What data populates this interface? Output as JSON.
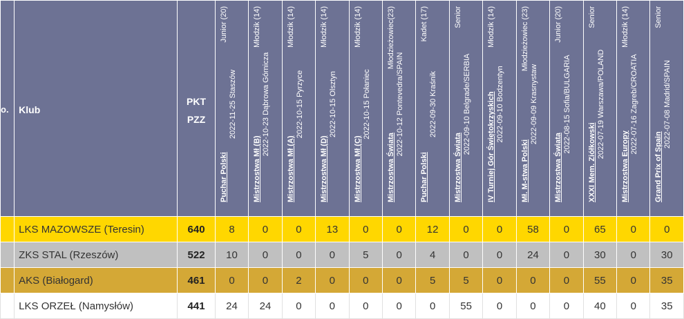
{
  "header": {
    "lp_label": "o.",
    "club_label": "Klub",
    "pkt_line1": "PKT",
    "pkt_line2": "PZZ"
  },
  "events": [
    {
      "name": "Puchar Polski",
      "category": "Junior (20)",
      "date_place": "2022-11-25 Staszów"
    },
    {
      "name": "Mistrzostwa Mł (B)",
      "category": "Młodzik (14)",
      "date_place": "2022-10-23 Dąbrowa Górnicza"
    },
    {
      "name": "Mistrzostwa Mł (A)",
      "category": "Młodzik (14)",
      "date_place": "2022-10-15 Pyrzyce"
    },
    {
      "name": "Mistrzostwa Mł (D)",
      "category": "Młodzik (14)",
      "date_place": "2022-10-15 Olsztyn"
    },
    {
      "name": "Mistrzostwa Mł (C)",
      "category": "Młodzik (14)",
      "date_place": "2022-10-15 Połaniec"
    },
    {
      "name": "Mistrzostwa Świata",
      "category": "Młodzieżowiec(23)",
      "date_place": "2022-10-12 Pontevedra/SPAIN"
    },
    {
      "name": "Puchar Polski",
      "category": "Kadet (17)",
      "date_place": "2022-09-30 Kraśnik"
    },
    {
      "name": "Mistrzostwa Świata",
      "category": "Senior",
      "date_place": "2022-09-10 Belgrade/SERBIA"
    },
    {
      "name": "IV Turniej Gór Świętokrzyskich",
      "category": "Młodzik (14)",
      "date_place": "2022-09-10 Bodzentyn"
    },
    {
      "name": "Mł. M-stwa Polski",
      "category": "Młodzieżowiec (23)",
      "date_place": "2022-09-09 Krasnystaw"
    },
    {
      "name": "Mistrzostwa Świata",
      "category": "Junior (20)",
      "date_place": "2022-08-15 Sofia/BULGARIA"
    },
    {
      "name": "XXXI Mem. Ziółkowski",
      "category": "Senior",
      "date_place": "2022-07-19 Warszawa/POLAND"
    },
    {
      "name": "Mistrzostwa Europy",
      "category": "Młodzik (14)",
      "date_place": "2022-07-16 Zagreb/CROATIA"
    },
    {
      "name": "Grand Prix of Spain",
      "category": "Senior",
      "date_place": "2022-07-08 Madrid/SPAIN"
    }
  ],
  "rows": [
    {
      "club": "LKS MAZOWSZE (Teresin)",
      "total": "640",
      "scores": [
        "8",
        "0",
        "0",
        "13",
        "0",
        "0",
        "12",
        "0",
        "0",
        "58",
        "0",
        "65",
        "0",
        "0"
      ]
    },
    {
      "club": "ZKS STAL (Rzeszów)",
      "total": "522",
      "scores": [
        "10",
        "0",
        "0",
        "0",
        "5",
        "0",
        "4",
        "0",
        "0",
        "24",
        "0",
        "30",
        "0",
        "30"
      ]
    },
    {
      "club": "AKS (Białogard)",
      "total": "461",
      "scores": [
        "0",
        "0",
        "2",
        "0",
        "0",
        "0",
        "5",
        "5",
        "0",
        "0",
        "0",
        "55",
        "0",
        "35"
      ]
    },
    {
      "club": "LKS ORZEŁ (Namysłów)",
      "total": "441",
      "scores": [
        "24",
        "24",
        "0",
        "0",
        "0",
        "0",
        "0",
        "55",
        "0",
        "0",
        "0",
        "40",
        "0",
        "35"
      ]
    }
  ]
}
